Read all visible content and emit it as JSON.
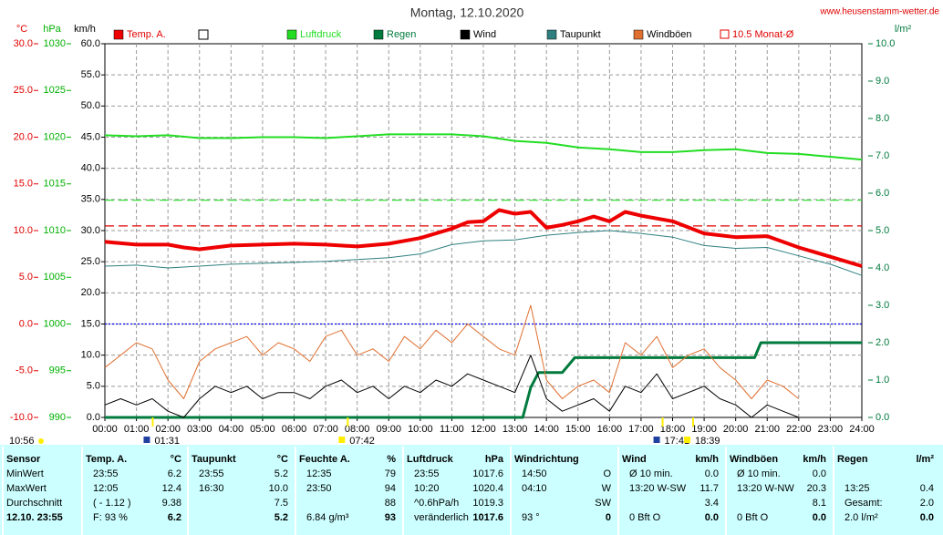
{
  "chart_data": {
    "type": "line",
    "title": "Montag, 12.10.2020",
    "source": "www.heusenstamm-wetter.de",
    "grid": true,
    "xlim": [
      0,
      24
    ],
    "xticks": [
      {
        "value": 0,
        "label": "00:00"
      },
      {
        "value": 1,
        "label": "01:00"
      },
      {
        "value": 2,
        "label": "02:00"
      },
      {
        "value": 3,
        "label": "03:00"
      },
      {
        "value": 4,
        "label": "04:00"
      },
      {
        "value": 5,
        "label": "05:00"
      },
      {
        "value": 6,
        "label": "06:00"
      },
      {
        "value": 7,
        "label": "07:00"
      },
      {
        "value": 8,
        "label": "08:00"
      },
      {
        "value": 9,
        "label": "09:00"
      },
      {
        "value": 10,
        "label": "10:00"
      },
      {
        "value": 11,
        "label": "11:00"
      },
      {
        "value": 12,
        "label": "12:00"
      },
      {
        "value": 13,
        "label": "13:00"
      },
      {
        "value": 14,
        "label": "14:00"
      },
      {
        "value": 15,
        "label": "15:00"
      },
      {
        "value": 16,
        "label": "16:00"
      },
      {
        "value": 17,
        "label": "17:00"
      },
      {
        "value": 18,
        "label": "18:00"
      },
      {
        "value": 19,
        "label": "19:00"
      },
      {
        "value": 20,
        "label": "20:00"
      },
      {
        "value": 21,
        "label": "21:00"
      },
      {
        "value": 22,
        "label": "22:00"
      },
      {
        "value": 23,
        "label": "23:00"
      },
      {
        "value": 24,
        "label": "24:00"
      }
    ],
    "axes": {
      "temp": {
        "label": "°C",
        "color": "#e00000",
        "lim": [
          -10,
          30
        ],
        "ticks": [
          {
            "value": 30,
            "label": "30.0"
          },
          {
            "value": 25,
            "label": "25.0"
          },
          {
            "value": 20,
            "label": "20.0"
          },
          {
            "value": 15,
            "label": "15.0"
          },
          {
            "value": 10,
            "label": "10.0"
          },
          {
            "value": 5,
            "label": "5.0"
          },
          {
            "value": 0,
            "label": "0.0"
          },
          {
            "value": -5,
            "label": "-5.0"
          },
          {
            "value": -10,
            "label": "-10.0"
          }
        ]
      },
      "hpa": {
        "label": "hPa",
        "color": "#00b000",
        "lim": [
          990,
          1030
        ],
        "ticks": [
          1030,
          1025,
          1020,
          1015,
          1010,
          1005,
          1000,
          995,
          990
        ]
      },
      "kmh": {
        "label": "km/h",
        "color": "#000000",
        "lim": [
          0,
          60
        ],
        "ticks": [
          {
            "value": 60,
            "label": "60.0"
          },
          {
            "value": 55,
            "label": "55.0"
          },
          {
            "value": 50,
            "label": "50.0"
          },
          {
            "value": 45,
            "label": "45.0"
          },
          {
            "value": 40,
            "label": "40.0"
          },
          {
            "value": 35,
            "label": "35.0"
          },
          {
            "value": 30,
            "label": "30.0"
          },
          {
            "value": 25,
            "label": "25.0"
          },
          {
            "value": 20,
            "label": "20.0"
          },
          {
            "value": 15,
            "label": "15.0"
          },
          {
            "value": 10,
            "label": "10.0"
          },
          {
            "value": 5,
            "label": "5.0"
          },
          {
            "value": 0,
            "label": "0.0"
          }
        ]
      },
      "rain": {
        "label": "l/m²",
        "color": "#007a3d",
        "lim": [
          0,
          10
        ],
        "ticks": [
          {
            "value": 10,
            "label": "10.0"
          },
          {
            "value": 9,
            "label": "9.0"
          },
          {
            "value": 8,
            "label": "8.0"
          },
          {
            "value": 7,
            "label": "7.0"
          },
          {
            "value": 6,
            "label": "6.0"
          },
          {
            "value": 5,
            "label": "5.0"
          },
          {
            "value": 4,
            "label": "4.0"
          },
          {
            "value": 3,
            "label": "3.0"
          },
          {
            "value": 2,
            "label": "2.0"
          },
          {
            "value": 1,
            "label": "1.0"
          },
          {
            "value": 0,
            "label": "0.0"
          }
        ]
      }
    },
    "series": [
      {
        "name": "Temp. A.",
        "color": "#ee0000",
        "axis": "temp",
        "width": 4,
        "x": [
          0,
          1,
          2,
          2.5,
          3,
          4,
          5,
          6,
          7,
          8,
          9,
          10,
          11,
          11.5,
          12,
          12.5,
          13,
          13.5,
          14,
          14.5,
          15,
          15.5,
          16,
          16.5,
          17,
          18,
          19,
          20,
          21,
          22,
          23,
          24
        ],
        "values": [
          8.8,
          8.5,
          8.5,
          8.2,
          8.0,
          8.4,
          8.5,
          8.6,
          8.5,
          8.3,
          8.6,
          9.2,
          10.2,
          10.9,
          11.0,
          12.2,
          11.8,
          12.0,
          10.3,
          10.6,
          11.0,
          11.5,
          11.0,
          12.0,
          11.6,
          11.0,
          9.7,
          9.3,
          9.4,
          8.2,
          7.2,
          6.2
        ]
      },
      {
        "name": "Luftdruck",
        "color": "#22dd22",
        "axis": "hpa",
        "width": 2,
        "x": [
          0,
          1,
          2,
          3,
          4,
          5,
          6,
          7,
          8,
          9,
          10,
          11,
          12,
          13,
          14,
          15,
          16,
          17,
          18,
          19,
          20,
          21,
          22,
          23,
          24
        ],
        "values": [
          1020.2,
          1020.1,
          1020.2,
          1019.9,
          1019.9,
          1020.0,
          1020.0,
          1019.9,
          1020.1,
          1020.3,
          1020.3,
          1020.3,
          1020.1,
          1019.6,
          1019.4,
          1018.9,
          1018.7,
          1018.4,
          1018.4,
          1018.6,
          1018.7,
          1018.3,
          1018.2,
          1017.9,
          1017.6
        ]
      },
      {
        "name": "Regen",
        "color": "#007a3d",
        "axis": "rain",
        "width": 3,
        "x": [
          0,
          13.25,
          13.5,
          13.75,
          14.5,
          14.7,
          14.9,
          20.6,
          20.8,
          24
        ],
        "values": [
          0,
          0,
          0.8,
          1.2,
          1.2,
          1.4,
          1.6,
          1.6,
          2.0,
          2.0
        ]
      },
      {
        "name": "Wind",
        "color": "#000000",
        "axis": "kmh",
        "width": 1,
        "x": [
          0,
          0.5,
          1,
          1.5,
          2,
          2.5,
          3,
          3.5,
          4,
          4.5,
          5,
          5.5,
          6,
          6.5,
          7,
          7.5,
          8,
          8.5,
          9,
          9.5,
          10,
          10.5,
          11,
          11.5,
          12,
          12.5,
          13,
          13.5,
          14,
          14.5,
          15,
          15.5,
          16,
          16.5,
          17,
          17.5,
          18,
          18.5,
          19,
          19.5,
          20,
          20.5,
          21,
          21.5,
          22,
          22.5,
          23,
          23.5,
          24
        ],
        "values": [
          2,
          3,
          2,
          3,
          1,
          0,
          3,
          5,
          4,
          5,
          3,
          4,
          4,
          3,
          5,
          6,
          4,
          5,
          3,
          5,
          4,
          6,
          5,
          7,
          6,
          5,
          4,
          10,
          3,
          1,
          2,
          3,
          1,
          5,
          4,
          7,
          3,
          4,
          5,
          3,
          2,
          0,
          2,
          1,
          0,
          null,
          null,
          null,
          null
        ]
      },
      {
        "name": "Taupunkt",
        "color": "#2f7f7f",
        "axis": "temp",
        "width": 1,
        "x": [
          0,
          1,
          2,
          3,
          4,
          5,
          6,
          7,
          8,
          9,
          10,
          11,
          12,
          13,
          14,
          15,
          16,
          17,
          18,
          19,
          20,
          21,
          22,
          23,
          24
        ],
        "values": [
          6.2,
          6.3,
          6.0,
          6.2,
          6.4,
          6.5,
          6.6,
          6.7,
          6.9,
          7.1,
          7.5,
          8.5,
          8.9,
          9.0,
          9.5,
          9.8,
          10.0,
          9.7,
          9.3,
          8.4,
          8.1,
          8.2,
          7.3,
          6.4,
          5.2
        ]
      },
      {
        "name": "Windböen",
        "color": "#e07030",
        "axis": "kmh",
        "width": 1,
        "x": [
          0,
          0.5,
          1,
          1.5,
          2,
          2.5,
          3,
          3.5,
          4,
          4.5,
          5,
          5.5,
          6,
          6.5,
          7,
          7.5,
          8,
          8.5,
          9,
          9.5,
          10,
          10.5,
          11,
          11.5,
          12,
          12.5,
          13,
          13.5,
          14,
          14.5,
          15,
          15.5,
          16,
          16.5,
          17,
          17.5,
          18,
          18.5,
          19,
          19.5,
          20,
          20.5,
          21,
          21.5,
          22,
          22.5,
          23,
          23.5,
          24
        ],
        "values": [
          8,
          10,
          12,
          11,
          6,
          3,
          9,
          11,
          12,
          13,
          10,
          12,
          11,
          9,
          13,
          14,
          10,
          11,
          9,
          13,
          11,
          14,
          12,
          15,
          13,
          11,
          10,
          18,
          6,
          3,
          5,
          6,
          4,
          12,
          10,
          13,
          8,
          10,
          11,
          8,
          6,
          3,
          6,
          5,
          3,
          null,
          null,
          null,
          null
        ]
      }
    ],
    "reference_lines": [
      {
        "name": "10.5 Monat-Ø",
        "axis": "temp",
        "value": 10.5,
        "color": "#e00000"
      },
      {
        "axis": "hpa",
        "value": 1013.25,
        "color": "#22dd22"
      },
      {
        "axis": "temp",
        "value": 0,
        "color": "#0000ee"
      }
    ],
    "time_markers": [
      "01:31",
      "07:42",
      "17:41",
      "18:39"
    ],
    "corner_time": "10:56"
  },
  "table": {
    "panels": [
      {
        "header": {
          "left": "Sensor"
        },
        "rows": [
          {
            "left": "MinWert"
          },
          {
            "left": "MaxWert"
          },
          {
            "left": "Durchschnitt"
          },
          {
            "left": "12.10. 23:55"
          }
        ]
      },
      {
        "header": {
          "left": "Temp. A.",
          "right": "°C"
        },
        "rows": [
          {
            "left": "23:55",
            "right": "6.2"
          },
          {
            "left": "12:05",
            "right": "12.4"
          },
          {
            "left": "( - 1.12 )",
            "right": "9.38"
          },
          {
            "left": "F: 93 %",
            "right": "6.2"
          }
        ]
      },
      {
        "header": {
          "left": "Taupunkt",
          "right": "°C"
        },
        "rows": [
          {
            "left": "23:55",
            "right": "5.2"
          },
          {
            "left": "16:30",
            "right": "10.0"
          },
          {
            "right": "7.5"
          },
          {
            "right": "5.2"
          }
        ]
      },
      {
        "header": {
          "left": "Feuchte A.",
          "right": "%"
        },
        "rows": [
          {
            "left": "12:35",
            "right": "79"
          },
          {
            "left": "23:50",
            "right": "94"
          },
          {
            "right": "88"
          },
          {
            "left": "6.84 g/m³",
            "right": "93"
          }
        ]
      },
      {
        "header": {
          "left": "Luftdruck",
          "right": "hPa"
        },
        "rows": [
          {
            "left": "23:55",
            "right": "1017.6"
          },
          {
            "left": "10:20",
            "right": "1020.4"
          },
          {
            "left": "^0.6hPa/h",
            "right": "1019.3"
          },
          {
            "left": "veränderlich",
            "right": "1017.6"
          }
        ]
      },
      {
        "header": {
          "left": "Windrichtung"
        },
        "rows": [
          {
            "left": "14:50",
            "right": "O"
          },
          {
            "left": "04:10",
            "right": "W"
          },
          {
            "right": "SW"
          },
          {
            "left": "93 °",
            "right": "0"
          }
        ]
      },
      {
        "header": {
          "left": "Wind",
          "right": "km/h"
        },
        "rows": [
          {
            "left": "Ø 10 min.",
            "right": "0.0"
          },
          {
            "left": "13:20   W-SW",
            "right": "11.7"
          },
          {
            "right": "3.4"
          },
          {
            "left": "0 Bft O",
            "right": "0.0"
          }
        ]
      },
      {
        "header": {
          "left": "Windböen",
          "right": "km/h"
        },
        "rows": [
          {
            "left": "Ø 10 min.",
            "right": "0.0"
          },
          {
            "left": "13:20   W-NW",
            "right": "20.3"
          },
          {
            "right": "8.1"
          },
          {
            "left": "0 Bft O",
            "right": "0.0"
          }
        ]
      },
      {
        "header": {
          "left": "Regen",
          "right": "l/m²"
        },
        "rows": [
          null,
          {
            "left": "13:25",
            "right": "0.4"
          },
          {
            "left": "Gesamt:",
            "right": "2.0"
          },
          {
            "left": "2.0 l/m²",
            "right": "0.0"
          }
        ]
      }
    ]
  }
}
